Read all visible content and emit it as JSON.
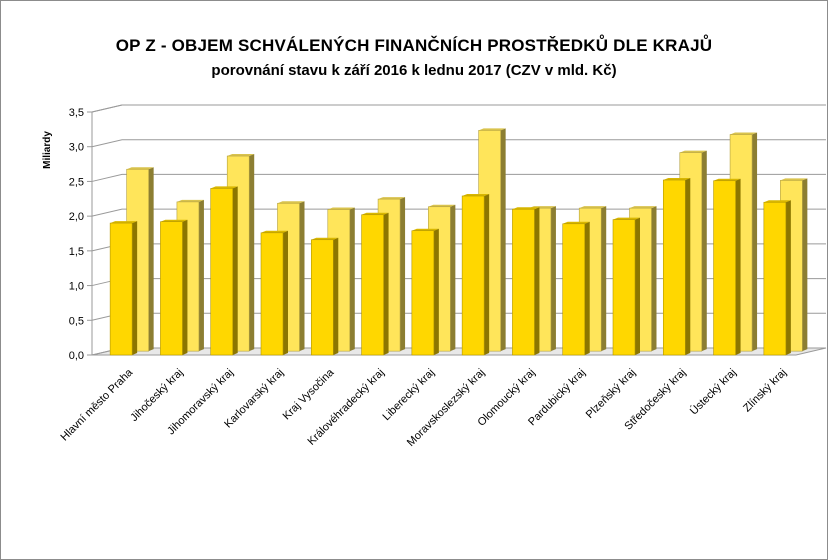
{
  "chart_data": {
    "type": "bar",
    "title": "OP Z - OBJEM SCHVÁLENÝCH FINANČNÍCH PROSTŘEDKŮ DLE KRAJŮ",
    "subtitle": "porovnání stavu k září 2016 k lednu 2017 (CZV v mld. Kč)",
    "xlabel": "",
    "ylabel": "Miliardy",
    "ylim": [
      0,
      3.5
    ],
    "yticks": [
      "0,0",
      "0,5",
      "1,0",
      "1,5",
      "2,0",
      "2,5",
      "3,0",
      "3,5"
    ],
    "grid": true,
    "categories": [
      "Hlavní město Praha",
      "Jihočeský kraj",
      "Jihomoravský kraj",
      "Karlovarský kraj",
      "Kraj Vysočina",
      "Královéhradecký kraj",
      "Liberecký kraj",
      "Moravskoslezský kraj",
      "Olomoucký kraj",
      "Pardubický kraj",
      "Plzeňský kraj",
      "Středočeský kraj",
      "Ústecký kraj",
      "Zlínský kraj"
    ],
    "series": [
      {
        "values": [
          1.9,
          1.92,
          2.4,
          1.76,
          1.66,
          2.02,
          1.79,
          2.29,
          2.1,
          1.89,
          1.95,
          2.52,
          2.51,
          2.2
        ],
        "color": "#ffd700"
      },
      {
        "values": [
          2.62,
          2.15,
          2.81,
          2.13,
          2.04,
          2.19,
          2.08,
          3.18,
          2.06,
          2.06,
          2.06,
          2.86,
          3.12,
          2.46
        ],
        "color": "#ffe55a"
      }
    ]
  }
}
